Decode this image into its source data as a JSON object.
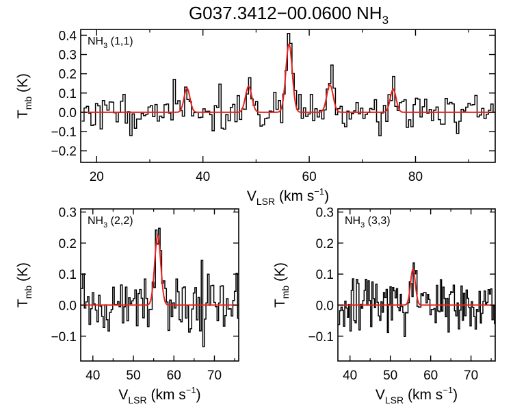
{
  "figure": {
    "title": {
      "main": "G037.3412−00.0600 NH",
      "sub": "3"
    }
  },
  "colors": {
    "axis": "#000000",
    "spectrum": "#000000",
    "fit": "#e8231e",
    "background": "#ffffff"
  },
  "chart_data": [
    {
      "id": "p11",
      "type": "line",
      "label_species": "NH",
      "label_sub": "3",
      "label_trans": " (1,1)",
      "xlabel": {
        "main": "V",
        "sub": "LSR",
        "unit": " (km s",
        "sup": "−1",
        "close": ")"
      },
      "ylabel": {
        "main": "T",
        "sub": "mb",
        "unit": " (K)"
      },
      "xlim": [
        17,
        95
      ],
      "ylim": [
        -0.26,
        0.43
      ],
      "xticks": [
        20,
        40,
        60,
        80
      ],
      "xtick_labels": [
        "20",
        "40",
        "60",
        "80"
      ],
      "yticks": [
        -0.2,
        -0.1,
        0.0,
        0.1,
        0.2,
        0.3,
        0.4
      ],
      "ytick_labels": [
        "−0.2",
        "−0.1",
        "0.0",
        "0.1",
        "0.2",
        "0.3",
        "0.4"
      ],
      "spectrum": {
        "start": 17.2,
        "step": 0.43,
        "noise": 0.048,
        "seed": 11,
        "shape": "hyperfine"
      },
      "fit_components": [
        {
          "center": 37.0,
          "amplitude": 0.125,
          "sigma": 0.55
        },
        {
          "center": 48.6,
          "amplitude": 0.135,
          "sigma": 0.6
        },
        {
          "center": 56.2,
          "amplitude": 0.355,
          "sigma": 0.6
        },
        {
          "center": 63.9,
          "amplitude": 0.142,
          "sigma": 0.6
        },
        {
          "center": 75.8,
          "amplitude": 0.12,
          "sigma": 0.55
        }
      ]
    },
    {
      "id": "p22",
      "type": "line",
      "label_species": "NH",
      "label_sub": "3",
      "label_trans": " (2,2)",
      "xlabel": {
        "main": "V",
        "sub": "LSR",
        "unit": " (km s",
        "sup": "−1",
        "close": ")"
      },
      "ylabel": {
        "main": "T",
        "sub": "mb",
        "unit": " (K)"
      },
      "xlim": [
        37,
        76
      ],
      "ylim": [
        -0.18,
        0.31
      ],
      "xticks": [
        40,
        50,
        60,
        70
      ],
      "xtick_labels": [
        "40",
        "50",
        "60",
        "70"
      ],
      "yticks": [
        -0.1,
        0.0,
        0.1,
        0.2,
        0.3
      ],
      "ytick_labels": [
        "−0.1",
        "0.0",
        "0.1",
        "0.2",
        "0.3"
      ],
      "spectrum": {
        "start": 37.1,
        "step": 0.39,
        "noise": 0.045,
        "seed": 22,
        "shape": "single"
      },
      "fit_components": [
        {
          "center": 56.0,
          "amplitude": 0.225,
          "sigma": 0.75
        }
      ]
    },
    {
      "id": "p33",
      "type": "line",
      "label_species": "NH",
      "label_sub": "3",
      "label_trans": " (3,3)",
      "xlabel": {
        "main": "V",
        "sub": "LSR",
        "unit": " (km s",
        "sup": "−1",
        "close": ")"
      },
      "ylabel": {
        "main": "T",
        "sub": "mb",
        "unit": " (K)"
      },
      "xlim": [
        37,
        76
      ],
      "ylim": [
        -0.18,
        0.31
      ],
      "xticks": [
        40,
        50,
        60,
        70
      ],
      "xtick_labels": [
        "40",
        "50",
        "60",
        "70"
      ],
      "yticks": [
        -0.1,
        0.0,
        0.1,
        0.2,
        0.3
      ],
      "ytick_labels": [
        "−0.1",
        "0.0",
        "0.1",
        "0.2",
        "0.3"
      ],
      "spectrum": {
        "start": 37.1,
        "step": 0.32,
        "noise": 0.045,
        "seed": 33,
        "shape": "single"
      },
      "fit_components": [
        {
          "center": 55.6,
          "amplitude": 0.115,
          "sigma": 0.6
        }
      ]
    }
  ]
}
